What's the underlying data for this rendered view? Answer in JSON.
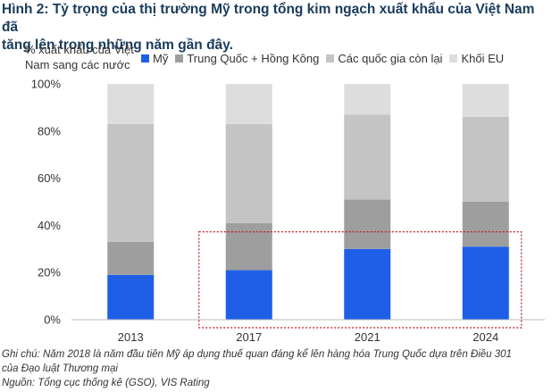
{
  "figure": {
    "title_line1": "Hình 2: Tỷ trọng của thị trường Mỹ trong tổng kim ngạch xuất khẩu của Việt Nam đã",
    "title_line2": "tăng lên trong những năm gần đây.",
    "ylabel_line1": "% xuất khẩu của Việt",
    "ylabel_line2": "Nam sang các nước",
    "note_line1": "Ghi chú: Năm 2018 là năm đầu tiên Mỹ áp dụng thuế quan đáng kể lên hàng hóa Trung Quốc dựa trên Điều 301",
    "note_line2": "của Đạo luật Thương mại",
    "source": "Nguồn: Tổng cục thống kê (GSO), VIS Rating"
  },
  "legend": [
    {
      "label": "Mỹ",
      "color": "#1f5fe8"
    },
    {
      "label": "Trung Quốc + Hồng Kông",
      "color": "#9e9e9e"
    },
    {
      "label": "Các quốc gia còn lại",
      "color": "#c4c4c4"
    },
    {
      "label": "Khối EU",
      "color": "#dddddd"
    }
  ],
  "chart_data": {
    "type": "bar",
    "stacked": true,
    "categories": [
      "2013",
      "2017",
      "2021",
      "2024"
    ],
    "series": [
      {
        "name": "Mỹ",
        "color": "#1f5fe8",
        "values": [
          19,
          21,
          30,
          31
        ]
      },
      {
        "name": "Trung Quốc + Hồng Kông",
        "color": "#9e9e9e",
        "values": [
          14,
          20,
          21,
          19
        ]
      },
      {
        "name": "Các quốc gia còn lại",
        "color": "#c4c4c4",
        "values": [
          50,
          42,
          36,
          36
        ]
      },
      {
        "name": "Khối EU",
        "color": "#dddddd",
        "values": [
          17,
          17,
          13,
          14
        ]
      }
    ],
    "ylim": [
      0,
      100
    ],
    "yticks": [
      "0%",
      "20%",
      "40%",
      "60%",
      "80%",
      "100%"
    ],
    "ytick_values": [
      0,
      20,
      40,
      60,
      80,
      100
    ],
    "grid": false,
    "legend_position": "top",
    "highlight": {
      "categories": [
        "2017",
        "2021",
        "2024"
      ],
      "up_to_value": 35,
      "style": "dotted",
      "color": "#c0161c"
    }
  }
}
